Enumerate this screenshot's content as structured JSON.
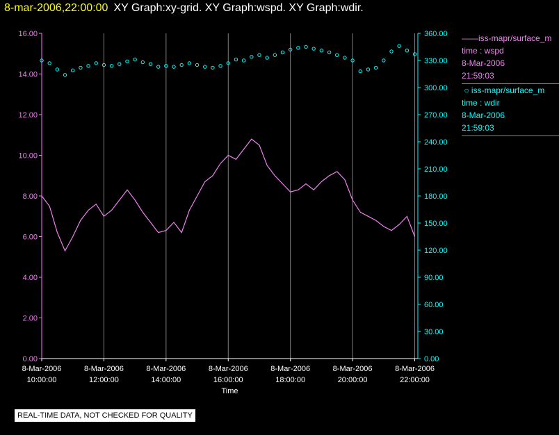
{
  "header": {
    "timestamp": "8-mar-2006,22:00:00",
    "graphs": "XY Graph:xy-grid.  XY Graph:wspd.  XY Graph:wdir."
  },
  "notice": "REAL-TIME DATA, NOT CHECKED FOR QUALITY",
  "legend": {
    "wspd": {
      "label": "iss-mapr/surface_m",
      "line2": "time : wspd",
      "date": "8-Mar-2006",
      "time": "21:59:03"
    },
    "wdir": {
      "label": "iss-mapr/surface_m",
      "line2": "time : wdir",
      "date": "8-Mar-2006",
      "time": "21:59:03"
    }
  },
  "colors": {
    "wspd": "#ee82ee",
    "wdir": "#00ffff",
    "grid": "#808080"
  },
  "chart_data": {
    "type": "line",
    "xlabel": "Time",
    "xlim": [
      10.0,
      22.1
    ],
    "x_ticks": [
      {
        "date": "8-Mar-2006",
        "time": "10:00:00",
        "hour": 10
      },
      {
        "date": "8-Mar-2006",
        "time": "12:00:00",
        "hour": 12
      },
      {
        "date": "8-Mar-2006",
        "time": "14:00:00",
        "hour": 14
      },
      {
        "date": "8-Mar-2006",
        "time": "16:00:00",
        "hour": 16
      },
      {
        "date": "8-Mar-2006",
        "time": "18:00:00",
        "hour": 18
      },
      {
        "date": "8-Mar-2006",
        "time": "20:00:00",
        "hour": 20
      },
      {
        "date": "8-Mar-2006",
        "time": "22:00:00",
        "hour": 22
      }
    ],
    "left_axis": {
      "ylim": [
        0,
        16
      ],
      "ticks": [
        "0.00",
        "2.00",
        "4.00",
        "6.00",
        "8.00",
        "10.00",
        "12.00",
        "14.00",
        "16.00"
      ]
    },
    "right_axis": {
      "ylim": [
        0,
        360
      ],
      "ticks": [
        "0.00",
        "30.00",
        "60.00",
        "90.00",
        "120.00",
        "150.00",
        "180.00",
        "210.00",
        "240.00",
        "270.00",
        "300.00",
        "330.00",
        "360.00"
      ]
    },
    "grid": "vertical",
    "series": [
      {
        "name": "wspd",
        "axis": "left",
        "style": "line",
        "x": [
          10.0,
          10.25,
          10.5,
          10.75,
          11.0,
          11.25,
          11.5,
          11.75,
          12.0,
          12.25,
          12.5,
          12.75,
          13.0,
          13.25,
          13.5,
          13.75,
          14.0,
          14.25,
          14.5,
          14.75,
          15.0,
          15.25,
          15.5,
          15.75,
          16.0,
          16.25,
          16.5,
          16.75,
          17.0,
          17.25,
          17.5,
          17.75,
          18.0,
          18.25,
          18.5,
          18.75,
          19.0,
          19.25,
          19.5,
          19.75,
          20.0,
          20.25,
          20.5,
          20.75,
          21.0,
          21.25,
          21.5,
          21.75,
          22.0
        ],
        "y": [
          8.0,
          7.5,
          6.2,
          5.3,
          6.0,
          6.8,
          7.3,
          7.6,
          7.0,
          7.3,
          7.8,
          8.3,
          7.8,
          7.2,
          6.7,
          6.2,
          6.3,
          6.7,
          6.2,
          7.3,
          8.0,
          8.7,
          9.0,
          9.6,
          10.0,
          9.8,
          10.3,
          10.8,
          10.5,
          9.5,
          9.0,
          8.6,
          8.2,
          8.3,
          8.6,
          8.3,
          8.7,
          9.0,
          9.2,
          8.8,
          7.8,
          7.2,
          7.0,
          6.8,
          6.5,
          6.3,
          6.6,
          7.0,
          6.0
        ]
      },
      {
        "name": "wdir",
        "axis": "right",
        "style": "points",
        "x": [
          10.0,
          10.25,
          10.5,
          10.75,
          11.0,
          11.25,
          11.5,
          11.75,
          12.0,
          12.25,
          12.5,
          12.75,
          13.0,
          13.25,
          13.5,
          13.75,
          14.0,
          14.25,
          14.5,
          14.75,
          15.0,
          15.25,
          15.5,
          15.75,
          16.0,
          16.25,
          16.5,
          16.75,
          17.0,
          17.25,
          17.5,
          17.75,
          18.0,
          18.25,
          18.5,
          18.75,
          19.0,
          19.25,
          19.5,
          19.75,
          20.0,
          20.25,
          20.5,
          20.75,
          21.0,
          21.25,
          21.5,
          21.75,
          22.0
        ],
        "y": [
          330,
          327,
          320,
          314,
          319,
          322,
          324,
          327,
          325,
          324,
          326,
          329,
          331,
          328,
          326,
          323,
          324,
          323,
          325,
          327,
          325,
          323,
          322,
          324,
          327,
          331,
          330,
          334,
          336,
          333,
          336,
          339,
          342,
          344,
          345,
          343,
          341,
          339,
          336,
          333,
          330,
          318,
          320,
          322,
          330,
          340,
          346,
          341,
          337
        ]
      }
    ]
  }
}
